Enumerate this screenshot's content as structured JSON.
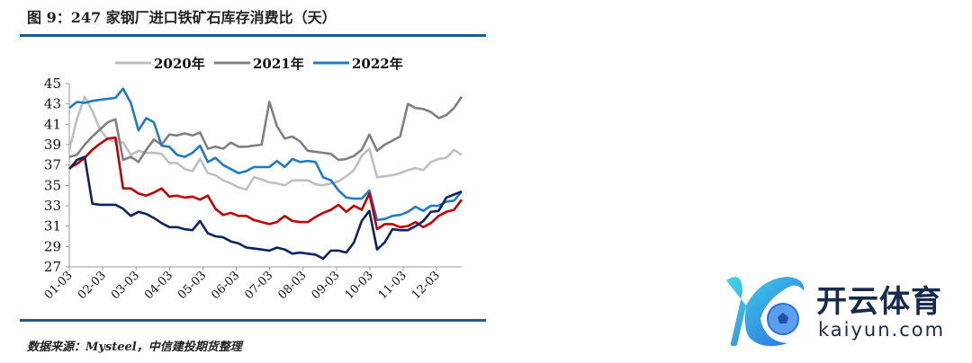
{
  "title": "图 9：247 家钢厂进口铁矿石库存消费比（天）",
  "source": "数据来源：Mysteel，中信建投期货整理",
  "logo": {
    "cn": "开云体育",
    "en": "kaiyun.com"
  },
  "chart_data": {
    "type": "line",
    "title": "247 家钢厂进口铁矿石库存消费比（天）",
    "xlabel": "",
    "ylabel": "",
    "ylim": [
      27,
      45
    ],
    "yticks": [
      "27",
      "29",
      "31",
      "33",
      "35",
      "37",
      "39",
      "41",
      "43",
      "45"
    ],
    "xticks": [
      "01-03",
      "02-03",
      "03-03",
      "04-03",
      "05-03",
      "06-03",
      "07-03",
      "08-03",
      "09-03",
      "10-03",
      "11-03",
      "12-03"
    ],
    "x_range_months": [
      0,
      11.75
    ],
    "legend_position": "top",
    "grid": false,
    "series": [
      {
        "name": "2020年",
        "color": "#bfbfbf",
        "values": [
          38.5,
          41.5,
          43.7,
          42.3,
          40.5,
          39.5,
          39.3,
          39.2,
          38.0,
          38.4,
          38.2,
          38.2,
          38.1,
          37.2,
          37.2,
          36.6,
          36.4,
          37.6,
          36.2,
          36.0,
          35.5,
          35.2,
          34.8,
          34.6,
          35.8,
          35.6,
          35.3,
          35.2,
          35.0,
          35.5,
          35.5,
          35.5,
          35.1,
          35.0,
          35.2,
          35.4,
          35.9,
          36.5,
          37.9,
          38.6,
          35.8,
          35.9,
          36.0,
          36.2,
          36.5,
          36.7,
          36.5,
          37.3,
          37.6,
          37.7,
          38.5,
          38.0
        ]
      },
      {
        "name": "2021年",
        "color": "#808080",
        "values": [
          37.8,
          38.0,
          39.0,
          39.8,
          40.5,
          41.2,
          41.5,
          37.5,
          37.8,
          37.3,
          38.5,
          39.5,
          39.0,
          40.0,
          39.9,
          40.1,
          39.9,
          40.2,
          38.6,
          38.8,
          38.6,
          39.2,
          38.8,
          38.8,
          38.9,
          39.0,
          43.2,
          40.8,
          39.6,
          39.8,
          39.3,
          38.4,
          38.3,
          38.2,
          38.1,
          37.5,
          37.6,
          37.9,
          38.5,
          40.0,
          38.4,
          39.0,
          39.4,
          39.8,
          43.0,
          42.6,
          42.5,
          42.2,
          41.6,
          41.9,
          42.6,
          43.7
        ]
      },
      {
        "name": "2022年",
        "color": "#1f7ac4",
        "values": [
          42.6,
          43.2,
          43.1,
          43.3,
          43.4,
          43.5,
          43.6,
          44.5,
          43.1,
          40.4,
          41.6,
          41.2,
          38.9,
          38.8,
          38.0,
          37.8,
          38.2,
          38.9,
          37.3,
          37.7,
          37.0,
          36.6,
          36.2,
          36.4,
          36.8,
          36.8,
          36.8,
          37.4,
          36.8,
          37.6,
          37.3,
          37.4,
          37.3,
          35.8,
          35.5,
          34.5,
          33.8,
          33.7,
          33.7,
          34.5,
          31.6,
          31.7,
          32.0,
          32.1,
          32.4,
          32.9,
          32.5,
          33.0,
          33.0,
          33.4,
          33.5,
          34.4
        ]
      },
      {
        "name": "",
        "color": "#c00000",
        "values": [
          36.7,
          37.1,
          37.7,
          38.5,
          39.1,
          39.6,
          39.7,
          34.7,
          34.7,
          34.2,
          34.0,
          34.3,
          34.7,
          33.9,
          34.0,
          33.8,
          33.9,
          33.6,
          34.0,
          32.7,
          32.1,
          32.3,
          32.0,
          32.0,
          31.6,
          31.4,
          31.2,
          31.4,
          32.0,
          31.5,
          31.4,
          31.4,
          31.9,
          32.3,
          32.6,
          33.1,
          32.4,
          33.0,
          32.6,
          34.2,
          30.7,
          31.2,
          31.2,
          30.9,
          31.0,
          31.4,
          30.9,
          31.3,
          32.0,
          32.4,
          32.6,
          33.6
        ]
      },
      {
        "name": "",
        "color": "#0f2363",
        "values": [
          36.6,
          37.5,
          37.8,
          33.2,
          33.1,
          33.1,
          33.1,
          32.7,
          32.0,
          32.4,
          32.2,
          31.8,
          31.3,
          30.9,
          30.9,
          30.7,
          30.6,
          31.5,
          30.3,
          30.0,
          29.9,
          29.5,
          29.3,
          28.9,
          28.8,
          28.7,
          28.6,
          28.9,
          28.7,
          28.3,
          28.4,
          28.3,
          28.2,
          27.8,
          28.6,
          28.6,
          28.4,
          29.4,
          31.5,
          32.5,
          28.7,
          29.4,
          30.7,
          30.6,
          30.6,
          31.0,
          31.5,
          32.4,
          32.5,
          33.8,
          34.1,
          34.4
        ]
      }
    ]
  }
}
